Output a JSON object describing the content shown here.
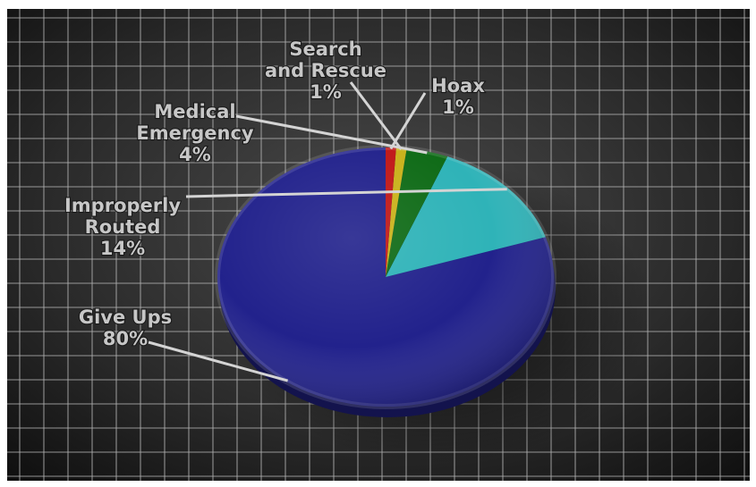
{
  "chart_data": {
    "type": "pie",
    "categories": [
      "Give Ups",
      "Improperly Routed",
      "Medical Emergency",
      "Search and Rescue",
      "Hoax"
    ],
    "values": [
      80,
      14,
      4,
      1,
      1
    ],
    "unit": "%",
    "labels": [
      {
        "lines": [
          "Give Ups"
        ],
        "value": "80%"
      },
      {
        "lines": [
          "Improperly",
          "Routed"
        ],
        "value": "14%"
      },
      {
        "lines": [
          "Medical",
          "Emergency"
        ],
        "value": "4%"
      },
      {
        "lines": [
          "Search",
          "and Rescue"
        ],
        "value": "1%"
      },
      {
        "lines": [
          "Hoax"
        ],
        "value": "1%"
      }
    ],
    "colors": [
      "#22228c",
      "#2fb3b8",
      "#0f6b17",
      "#c9b21a",
      "#c01818"
    ],
    "title": "",
    "legend": "none",
    "grid": true
  }
}
